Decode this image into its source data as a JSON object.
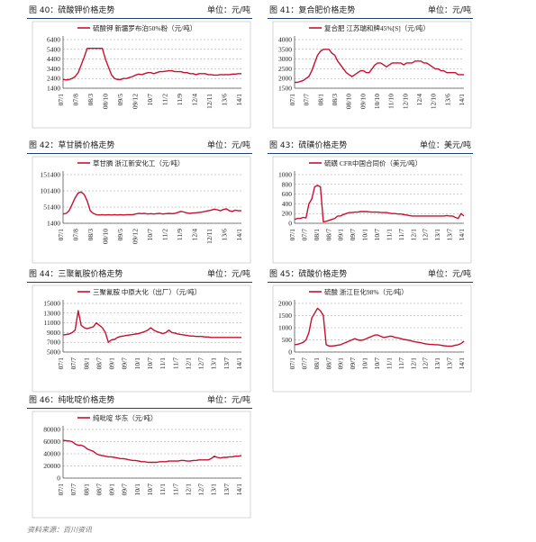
{
  "chart_data": [
    {
      "type": "line",
      "fig_title": "图 40：硫酸钾价格走势",
      "unit": "单位：元/吨",
      "series_name": "硫酸钾 新疆罗布泊50%粉（元/吨）",
      "ylim": [
        1400,
        6400
      ],
      "yticks": [
        "6400",
        "5400",
        "4400",
        "3400",
        "2400",
        "1400"
      ],
      "xticks": [
        "07/1",
        "07/8",
        "08/3",
        "08/10",
        "09/5",
        "09/12",
        "10/7",
        "11/2",
        "11/9",
        "12/4",
        "12/11",
        "13/6",
        "14/1"
      ],
      "values": [
        2300,
        2250,
        2300,
        2400,
        2600,
        3000,
        3800,
        4600,
        5500,
        5500,
        5500,
        5500,
        5500,
        5500,
        4400,
        3600,
        2800,
        2400,
        2300,
        2300,
        2400,
        2400,
        2500,
        2600,
        2750,
        2850,
        2800,
        2900,
        3000,
        3000,
        2900,
        3000,
        3100,
        3100,
        3150,
        3200,
        3200,
        3100,
        3100,
        3100,
        3000,
        3000,
        2900,
        2900,
        2800,
        2900,
        2900,
        2900,
        2800,
        2800,
        2750,
        2750,
        2800,
        2800,
        2800,
        2800,
        2850,
        2850,
        2900,
        2900
      ]
    },
    {
      "type": "line",
      "fig_title": "图 41：复合肥价格走势",
      "unit": "单位：元/吨",
      "series_name": "复合肥 江苏瑞和牌45%[S]（元/吨）",
      "ylim": [
        1500,
        4000
      ],
      "yticks": [
        "4000",
        "3500",
        "3000",
        "2500",
        "2000",
        "1500"
      ],
      "xticks": [
        "07/1",
        "07/7",
        "08/1",
        "08/3",
        "08/10",
        "09/10",
        "10/10",
        "11/10",
        "12/10",
        "12/4",
        "12/10",
        "13/6",
        "14/1"
      ],
      "values": [
        1800,
        1800,
        1850,
        1900,
        2000,
        2100,
        2400,
        2800,
        3200,
        3400,
        3500,
        3500,
        3500,
        3300,
        3200,
        2900,
        2700,
        2500,
        2300,
        2200,
        2100,
        2200,
        2300,
        2400,
        2400,
        2300,
        2300,
        2500,
        2700,
        2800,
        2800,
        2700,
        2600,
        2700,
        2800,
        2800,
        2800,
        2800,
        2700,
        2800,
        2800,
        2800,
        2900,
        2900,
        2900,
        2800,
        2800,
        2700,
        2600,
        2500,
        2500,
        2400,
        2400,
        2300,
        2300,
        2300,
        2300,
        2200,
        2200,
        2200
      ]
    },
    {
      "type": "line",
      "fig_title": "图 42：草甘膦价格走势",
      "unit": "单位：元/吨",
      "series_name": "草甘膦 浙江新安化工（元/吨）",
      "ylim": [
        1400,
        151400
      ],
      "yticks": [
        "151400",
        "101400",
        "51400",
        "1400"
      ],
      "xticks": [
        "07/1",
        "07/8",
        "08/3",
        "08/10",
        "09/5",
        "09/12",
        "10/7",
        "11/2",
        "11/9",
        "12/4",
        "12/11",
        "13/6",
        "14/1"
      ],
      "values": [
        30000,
        32000,
        40000,
        60000,
        80000,
        95000,
        98000,
        90000,
        70000,
        40000,
        32000,
        28000,
        27000,
        28000,
        27000,
        28000,
        27000,
        28000,
        27000,
        28000,
        27000,
        28000,
        28000,
        28000,
        30000,
        32000,
        31000,
        32000,
        30000,
        31000,
        30000,
        31000,
        32000,
        30000,
        31000,
        32000,
        31000,
        32000,
        35000,
        38000,
        36000,
        33000,
        32000,
        33000,
        34000,
        35000,
        36000,
        38000,
        40000,
        42000,
        45000,
        43000,
        40000,
        44000,
        46000,
        40000,
        38000,
        42000,
        40000,
        40000
      ]
    },
    {
      "type": "line",
      "fig_title": "图 43：硫磺价格走势",
      "unit": "单位：美元/吨",
      "series_name": "硫磺 CFR中国合同价（美元/吨）",
      "ylim": [
        0,
        1000
      ],
      "yticks": [
        "1000",
        "800",
        "600",
        "400",
        "200",
        "0"
      ],
      "xticks": [
        "07/1",
        "07/7",
        "08/1",
        "08/7",
        "09/1",
        "09/7",
        "10/1",
        "10/7",
        "11/1",
        "11/7",
        "12/1",
        "12/7",
        "13/1",
        "13/7",
        "14/1"
      ],
      "values": [
        80,
        100,
        100,
        120,
        110,
        400,
        500,
        750,
        780,
        750,
        30,
        40,
        60,
        80,
        100,
        150,
        150,
        180,
        200,
        220,
        220,
        230,
        230,
        240,
        240,
        240,
        235,
        230,
        230,
        230,
        225,
        220,
        220,
        210,
        200,
        200,
        190,
        190,
        180,
        170,
        160,
        150,
        150,
        150,
        150,
        150,
        150,
        150,
        150,
        150,
        150,
        150,
        150,
        160,
        150,
        150,
        120,
        100,
        200,
        150
      ]
    },
    {
      "type": "line",
      "fig_title": "图 44：三聚氰胺价格走势",
      "unit": "单位：元/吨",
      "series_name": "三聚氰胺 中原大化（出厂）（元/吨）",
      "ylim": [
        5000,
        15000
      ],
      "yticks": [
        "15000",
        "13000",
        "11000",
        "9000",
        "7000",
        "5000"
      ],
      "xticks": [
        "07/1",
        "07/7",
        "08/1",
        "08/7",
        "09/1",
        "09/7",
        "10/1",
        "10/7",
        "11/1",
        "11/7",
        "12/1",
        "12/7",
        "13/1",
        "13/7",
        "14/1"
      ],
      "values": [
        8500,
        8600,
        8700,
        9000,
        9500,
        13500,
        10500,
        10000,
        9800,
        10000,
        10200,
        11000,
        10500,
        10000,
        9000,
        7000,
        7500,
        7600,
        8000,
        8200,
        8300,
        8400,
        8500,
        8600,
        8700,
        8800,
        9000,
        9200,
        9500,
        10000,
        9500,
        9200,
        9000,
        8800,
        9000,
        9500,
        9000,
        8900,
        8700,
        8600,
        8500,
        8400,
        8300,
        8300,
        8200,
        8200,
        8200,
        8100,
        8100,
        8000,
        8000,
        8000,
        8000,
        8000,
        8000,
        8000,
        8000,
        8000,
        8000,
        8000
      ]
    },
    {
      "type": "line",
      "fig_title": "图 45：硫酸价格走势",
      "unit": "单位：元/吨",
      "series_name": "硫酸 浙江巨化98%（元/吨）",
      "ylim": [
        0,
        2000
      ],
      "yticks": [
        "2000",
        "1500",
        "1000",
        "500",
        "0"
      ],
      "xticks": [
        "07/1",
        "07/7",
        "08/1",
        "08/7",
        "09/1",
        "09/7",
        "10/1",
        "10/7",
        "11/1",
        "11/7",
        "12/1",
        "12/7",
        "13/1",
        "13/7",
        "14/1"
      ],
      "values": [
        300,
        320,
        350,
        400,
        500,
        800,
        1400,
        1600,
        1800,
        1700,
        1500,
        300,
        250,
        250,
        260,
        280,
        300,
        350,
        400,
        450,
        500,
        550,
        500,
        480,
        500,
        550,
        600,
        650,
        700,
        700,
        650,
        600,
        620,
        650,
        650,
        600,
        580,
        550,
        520,
        500,
        480,
        450,
        420,
        400,
        380,
        350,
        330,
        320,
        310,
        300,
        300,
        280,
        260,
        250,
        240,
        250,
        280,
        300,
        350,
        450
      ]
    },
    {
      "type": "line",
      "fig_title": "图 46：纯吡啶价格走势",
      "unit": "单位：元/吨",
      "series_name": "纯吡啶 华东（元/吨）",
      "ylim": [
        0,
        80000
      ],
      "yticks": [
        "80000",
        "60000",
        "40000",
        "20000",
        "0"
      ],
      "xticks": [
        "07/1",
        "07/7",
        "08/1",
        "08/7",
        "09/1",
        "09/7",
        "10/1",
        "10/7",
        "11/1",
        "11/7",
        "12/1",
        "12/7",
        "13/1",
        "13/7",
        "14/1"
      ],
      "values": [
        62000,
        61500,
        61000,
        60000,
        56000,
        54000,
        54000,
        52000,
        48000,
        46000,
        44000,
        40000,
        38000,
        37000,
        36000,
        35000,
        35000,
        34000,
        33000,
        32000,
        32000,
        31000,
        30000,
        29000,
        29000,
        28000,
        27000,
        27000,
        26000,
        26000,
        26000,
        26000,
        27000,
        27000,
        27000,
        28000,
        28000,
        28000,
        28000,
        29000,
        29000,
        28000,
        28000,
        29000,
        29000,
        30000,
        30000,
        30000,
        30000,
        32000,
        36000,
        34000,
        33000,
        34000,
        34000,
        35000,
        35000,
        36000,
        36000,
        37000
      ]
    }
  ],
  "source_text": "资料来源：百川资讯",
  "colors": {
    "line": "#c8102e",
    "axis": "#555555",
    "header_rule": "#1f3d7a"
  }
}
